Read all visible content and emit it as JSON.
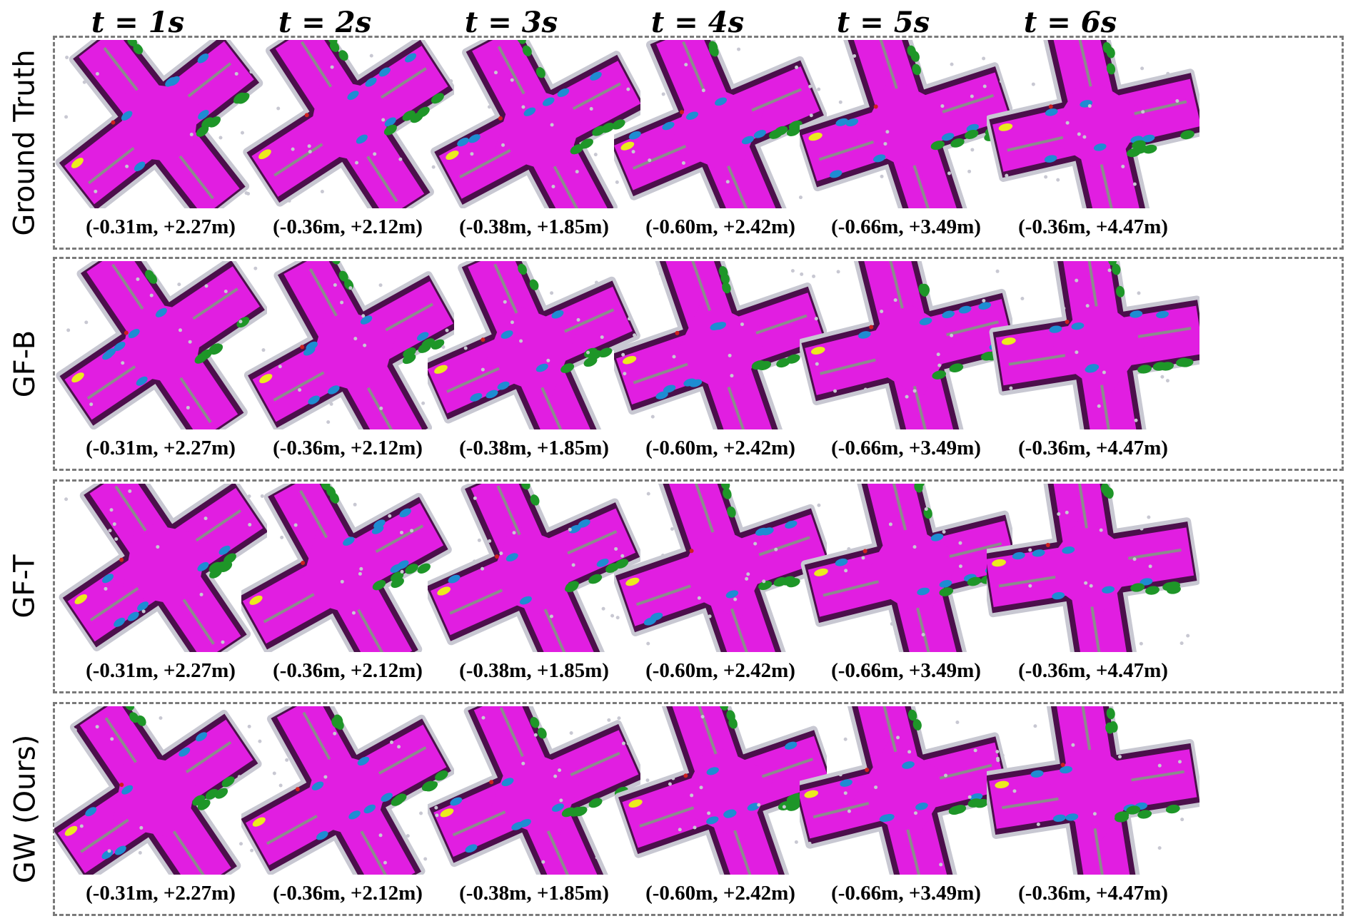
{
  "columns": [
    "t = 1s",
    "t = 2s",
    "t = 3s",
    "t = 4s",
    "t = 5s",
    "t = 6s"
  ],
  "rows": [
    {
      "label": "Ground Truth",
      "captions": [
        "(-0.31m, +2.27m)",
        "(-0.36m, +2.12m)",
        "(-0.38m, +1.85m)",
        "(-0.60m, +2.42m)",
        "(-0.66m, +3.49m)",
        "(-0.36m, +4.47m)"
      ]
    },
    {
      "label": "GF-B",
      "captions": [
        "(-0.31m, +2.27m)",
        "(-0.36m, +2.12m)",
        "(-0.38m, +1.85m)",
        "(-0.60m, +2.42m)",
        "(-0.66m, +3.49m)",
        "(-0.36m, +4.47m)"
      ]
    },
    {
      "label": "GF-T",
      "captions": [
        "(-0.31m, +2.27m)",
        "(-0.36m, +2.12m)",
        "(-0.38m, +1.85m)",
        "(-0.60m, +2.42m)",
        "(-0.66m, +3.49m)",
        "(-0.36m, +4.47m)"
      ]
    },
    {
      "label": "GW (Ours)",
      "captions": [
        "(-0.31m, +2.27m)",
        "(-0.36m, +2.12m)",
        "(-0.38m, +1.85m)",
        "(-0.60m, +2.42m)",
        "(-0.66m, +3.49m)",
        "(-0.36m, +4.47m)"
      ]
    }
  ],
  "colors": {
    "drivable": "#e11ee1",
    "sidewalk": "#4b0f4b",
    "structure": "#c8c8d2",
    "vegetation": "#1e9628",
    "vehicle": "#1e8cd2",
    "lane_marking": "#8c8c8c",
    "construction": "#ebeb1e",
    "barrier": "#cc2020",
    "border": "#7a7a7a"
  }
}
